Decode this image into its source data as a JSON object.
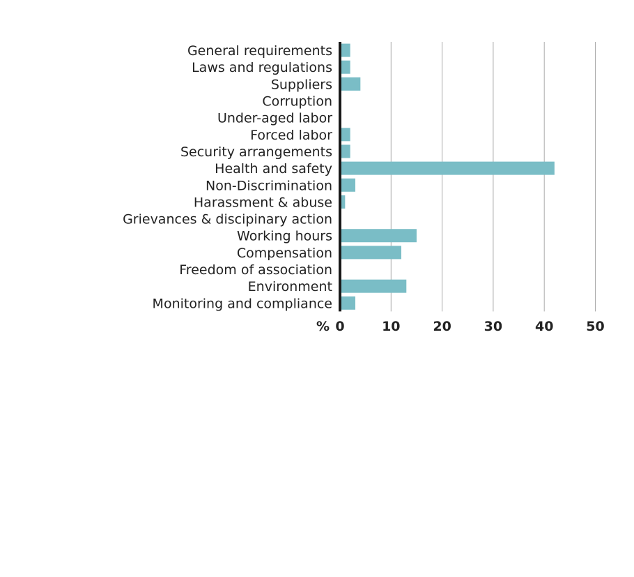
{
  "chart_data": {
    "type": "bar",
    "orientation": "horizontal",
    "title": "",
    "xlabel": "",
    "ylabel": "",
    "unit_label": "%",
    "categories": [
      "General requirements",
      "Laws and regulations",
      "Suppliers",
      "Corruption",
      "Under-aged labor",
      "Forced labor",
      "Security arrangements",
      "Health and safety",
      "Non-Discrimination",
      "Harassment & abuse",
      "Grievances & discipinary action",
      "Working hours",
      "Compensation",
      "Freedom of association",
      "Environment",
      "Monitoring and compliance"
    ],
    "values": [
      2,
      2,
      4,
      0,
      0,
      2,
      2,
      42,
      3,
      1,
      0,
      15,
      12,
      0,
      13,
      3
    ],
    "xlim": [
      0,
      50
    ],
    "xticks": [
      "0",
      "10",
      "20",
      "30",
      "40",
      "50"
    ],
    "grid": true,
    "legend": "none",
    "colors": {
      "bar": "#7abdc6",
      "axis": "#1a1a1a",
      "grid": "#aaaaaa",
      "text": "#222222"
    }
  }
}
